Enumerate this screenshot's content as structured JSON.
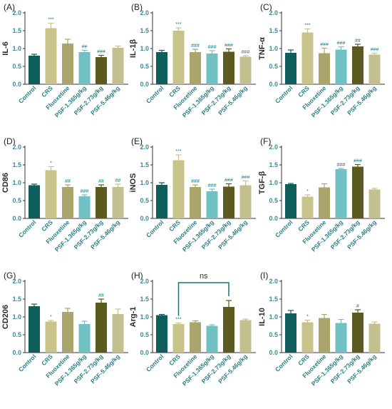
{
  "colors": [
    "#0f5e5c",
    "#c8c38a",
    "#aaa56a",
    "#6fc1c4",
    "#5c5a1e",
    "#c3c08f"
  ],
  "chart_data": [
    {
      "type": "bar",
      "panel": "(A)",
      "ylabel": "IL-6",
      "ylim": [
        0,
        2.0
      ],
      "ticks": [
        "0.0",
        "0.5",
        "1.0",
        "1.5",
        "2.0"
      ],
      "categories": [
        "Control",
        "CRS",
        "Fluoxetine",
        "PSF-1.365g/kg",
        "PSF-2.73g/kg",
        "PSF-5.46g/kg"
      ],
      "values": [
        0.8,
        1.57,
        1.14,
        0.9,
        0.76,
        1.02
      ],
      "errors": [
        0.04,
        0.14,
        0.12,
        0.05,
        0.05,
        0.05
      ],
      "annotations": [
        "",
        "***",
        "",
        "##",
        "###",
        ""
      ]
    },
    {
      "type": "bar",
      "panel": "(B)",
      "ylabel": "IL-1β",
      "ylim": [
        0,
        2.0
      ],
      "ticks": [
        "0.0",
        "0.5",
        "1.0",
        "1.5",
        "2.0"
      ],
      "categories": [
        "Control",
        "CRS",
        "Fluoxetine",
        "PSF-1.365g/kg",
        "PSF-2.73g/kg",
        "PSF-5.46g/kg"
      ],
      "values": [
        0.9,
        1.5,
        0.9,
        0.86,
        0.91,
        0.77
      ],
      "errors": [
        0.05,
        0.08,
        0.08,
        0.08,
        0.08,
        0.03
      ],
      "annotations": [
        "",
        "***",
        "###",
        "###",
        "###",
        "###"
      ]
    },
    {
      "type": "bar",
      "panel": "(C)",
      "ylabel": "TNF-α",
      "ylim": [
        0,
        2.0
      ],
      "ticks": [
        "0.0",
        "0.5",
        "1.0",
        "1.5",
        "2.0"
      ],
      "categories": [
        "Control",
        "CRS",
        "Fluoxetine",
        "PSF-1.365g/kg",
        "PSF-2.73g/kg",
        "PSF-5.46g/kg"
      ],
      "values": [
        0.88,
        1.45,
        0.87,
        0.97,
        1.06,
        0.83
      ],
      "errors": [
        0.08,
        0.1,
        0.14,
        0.08,
        0.06,
        0.04
      ],
      "annotations": [
        "",
        "***",
        "###",
        "###",
        "##",
        "###"
      ]
    },
    {
      "type": "bar",
      "panel": "(D)",
      "ylabel": "CD86",
      "ylim": [
        0,
        2.0
      ],
      "ticks": [
        "0.0",
        "0.5",
        "1.0",
        "1.5",
        "2.0"
      ],
      "categories": [
        "Control",
        "CRS",
        "Fluoxetine",
        "PSF-1.365g/kg",
        "PSF-2.73g/kg",
        "PSF-5.46g/kg"
      ],
      "values": [
        0.93,
        1.35,
        0.88,
        0.62,
        0.88,
        0.88
      ],
      "errors": [
        0.03,
        0.1,
        0.06,
        0.04,
        0.06,
        0.08
      ],
      "annotations": [
        "",
        "*",
        "##",
        "###",
        "##",
        "##"
      ]
    },
    {
      "type": "bar",
      "panel": "(E)",
      "ylabel": "iNOS",
      "ylim": [
        0,
        2.0
      ],
      "ticks": [
        "0.0",
        "0.5",
        "1.0",
        "1.5",
        "2.0"
      ],
      "categories": [
        "Control",
        "CRS",
        "Fluoxetine",
        "PSF-1.365g/kg",
        "PSF-2.73g/kg",
        "PSF-5.46g/kg"
      ],
      "values": [
        0.94,
        1.63,
        0.88,
        0.76,
        0.89,
        0.93
      ],
      "errors": [
        0.06,
        0.15,
        0.06,
        0.06,
        0.08,
        0.12
      ],
      "annotations": [
        "",
        "***",
        "###",
        "###",
        "###",
        "###"
      ]
    },
    {
      "type": "bar",
      "panel": "(F)",
      "ylabel": "TGF-β",
      "ylim": [
        0,
        2.0
      ],
      "ticks": [
        "0.0",
        "0.5",
        "1.0",
        "1.5",
        "2.0"
      ],
      "categories": [
        "Control",
        "CRS",
        "Fluoxetine",
        "PSF-1.365g/kg",
        "PSF-2.73g/kg",
        "PSF-5.46g/kg"
      ],
      "values": [
        0.96,
        0.61,
        0.87,
        1.38,
        1.45,
        0.81
      ],
      "errors": [
        0.02,
        0.05,
        0.1,
        0.02,
        0.06,
        0.03
      ],
      "annotations": [
        "",
        "*",
        "",
        "###",
        "###",
        ""
      ]
    },
    {
      "type": "bar",
      "panel": "(G)",
      "ylabel": "CD206",
      "ylim": [
        0,
        2.0
      ],
      "ticks": [
        "0.0",
        "0.5",
        "1.0",
        "1.5",
        "2.0"
      ],
      "categories": [
        "Control",
        "CRS",
        "Fluoxetine",
        "PSF-1.365g/kg",
        "PSF-2.73g/kg",
        "PSF-5.46g/kg"
      ],
      "values": [
        1.3,
        0.87,
        1.14,
        0.8,
        1.4,
        1.08
      ],
      "errors": [
        0.06,
        0.03,
        0.1,
        0.08,
        0.1,
        0.14
      ],
      "annotations": [
        "",
        "*",
        "",
        "",
        "##",
        ""
      ]
    },
    {
      "type": "bar",
      "panel": "(H)",
      "ylabel": "Arg-1",
      "ylim": [
        0,
        2.0
      ],
      "ticks": [
        "0.0",
        "0.5",
        "1.0",
        "1.5",
        "2.0"
      ],
      "categories": [
        "Control",
        "CRS",
        "Fluoxetine",
        "PSF-1.365g/kg",
        "PSF-2.73g/kg",
        "PSF-5.46g/kg"
      ],
      "values": [
        1.05,
        0.8,
        0.85,
        0.75,
        1.28,
        0.91
      ],
      "errors": [
        0.02,
        0.03,
        0.04,
        0.03,
        0.18,
        0.03
      ],
      "annotations": [
        "",
        "***",
        "",
        "",
        "",
        ""
      ],
      "bracket": {
        "from": 1,
        "to": 4,
        "label": "ns"
      }
    },
    {
      "type": "bar",
      "panel": "(I)",
      "ylabel": "IL-10",
      "ylim": [
        0,
        2.0
      ],
      "ticks": [
        "0.0",
        "0.5",
        "1.0",
        "1.5",
        "2.0"
      ],
      "categories": [
        "Control",
        "CRS",
        "Fluoxetine",
        "PSF-1.365g/kg",
        "PSF-2.73g/kg",
        "PSF-5.46g/kg"
      ],
      "values": [
        1.1,
        0.85,
        0.97,
        0.83,
        1.12,
        0.81
      ],
      "errors": [
        0.08,
        0.06,
        0.1,
        0.1,
        0.08,
        0.05
      ],
      "annotations": [
        "",
        "*",
        "",
        "",
        "#",
        ""
      ]
    }
  ]
}
